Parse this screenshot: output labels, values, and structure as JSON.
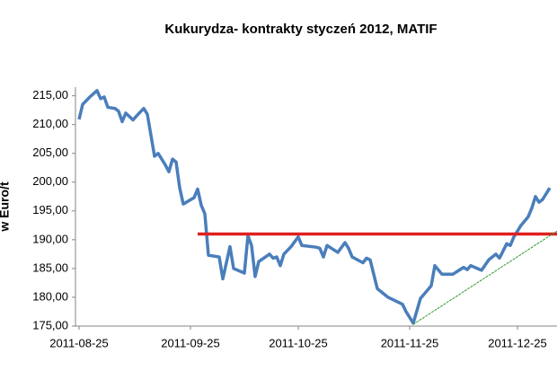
{
  "chart_data": {
    "type": "line",
    "title": "Kukurydza- kontrakty styczeń 2012, MATIF",
    "y_label": "w Euro/t",
    "x": [
      "2011-08-25",
      "2011-08-26",
      "2011-08-28",
      "2011-08-30",
      "2011-08-31",
      "2011-09-01",
      "2011-09-02",
      "2011-09-04",
      "2011-09-05",
      "2011-09-06",
      "2011-09-07",
      "2011-09-09",
      "2011-09-10",
      "2011-09-12",
      "2011-09-13",
      "2011-09-15",
      "2011-09-16",
      "2011-09-18",
      "2011-09-19",
      "2011-09-20",
      "2011-09-21",
      "2011-09-22",
      "2011-09-23",
      "2011-09-26",
      "2011-09-27",
      "2011-09-28",
      "2011-09-29",
      "2011-09-30",
      "2011-10-03",
      "2011-10-04",
      "2011-10-05",
      "2011-10-06",
      "2011-10-07",
      "2011-10-10",
      "2011-10-11",
      "2011-10-12",
      "2011-10-13",
      "2011-10-14",
      "2011-10-17",
      "2011-10-18",
      "2011-10-19",
      "2011-10-20",
      "2011-10-21",
      "2011-10-23",
      "2011-10-25",
      "2011-10-26",
      "2011-10-30",
      "2011-10-31",
      "2011-11-01",
      "2011-11-02",
      "2011-11-05",
      "2011-11-07",
      "2011-11-08",
      "2011-11-09",
      "2011-11-12",
      "2011-11-13",
      "2011-11-14",
      "2011-11-16",
      "2011-11-19",
      "2011-11-23",
      "2011-11-24",
      "2011-11-26",
      "2011-11-28",
      "2011-12-01",
      "2011-12-02",
      "2011-12-04",
      "2011-12-07",
      "2011-12-10",
      "2011-12-11",
      "2011-12-12",
      "2011-12-15",
      "2011-12-17",
      "2011-12-19",
      "2011-12-20",
      "2011-12-22",
      "2011-12-23",
      "2011-12-24",
      "2011-12-26",
      "2011-12-28",
      "2011-12-29",
      "2011-12-30",
      "2011-12-31",
      "2012-01-01",
      "2012-01-03"
    ],
    "series": [
      {
        "color": "#4a7ebb",
        "values": [
          210.9,
          213.5,
          214.8,
          215.9,
          214.5,
          214.8,
          213.0,
          212.8,
          212.3,
          210.5,
          212.0,
          210.8,
          211.5,
          212.8,
          211.8,
          204.5,
          205.0,
          203.0,
          201.8,
          204.0,
          203.5,
          199.0,
          196.2,
          197.3,
          198.8,
          196.0,
          194.5,
          187.3,
          187.0,
          183.2,
          186.0,
          188.8,
          185.0,
          184.2,
          190.7,
          189.0,
          183.6,
          186.2,
          187.5,
          186.8,
          187.0,
          185.5,
          187.5,
          188.8,
          190.5,
          189.0,
          188.7,
          188.5,
          187.0,
          189.0,
          187.8,
          189.5,
          188.5,
          187.0,
          186.0,
          186.8,
          186.5,
          181.5,
          180.0,
          178.8,
          177.5,
          175.5,
          179.8,
          182.0,
          185.5,
          184.0,
          184.0,
          185.2,
          184.8,
          185.5,
          184.7,
          186.5,
          187.5,
          186.8,
          189.3,
          189.0,
          190.5,
          192.5,
          194.0,
          195.5,
          197.5,
          196.5,
          197.0,
          199.0
        ]
      }
    ],
    "reference_lines": [
      {
        "value": 191,
        "x_start": "2011-09-27",
        "color": "#e02020"
      }
    ],
    "trend_line": {
      "x": [
        "2011-11-26",
        "2012-01-05"
      ],
      "values": [
        175.3,
        191.5
      ],
      "color": "#2e9a2e"
    },
    "xlim": [
      "2011-08-24",
      "2012-01-05"
    ],
    "xticks": [
      "2011-08-25",
      "2011-09-25",
      "2011-10-25",
      "2011-11-25",
      "2011-12-25"
    ],
    "ylim": [
      175,
      216.5
    ],
    "yticks": [
      {
        "value": 175,
        "label": "175,00"
      },
      {
        "value": 180,
        "label": "180,00"
      },
      {
        "value": 185,
        "label": "185,00"
      },
      {
        "value": 190,
        "label": "190,00"
      },
      {
        "value": 195,
        "label": "195,00"
      },
      {
        "value": 200,
        "label": "200,00"
      },
      {
        "value": 205,
        "label": "205,00"
      },
      {
        "value": 210,
        "label": "210,00"
      },
      {
        "value": 215,
        "label": "215,00"
      }
    ],
    "grid": false
  }
}
